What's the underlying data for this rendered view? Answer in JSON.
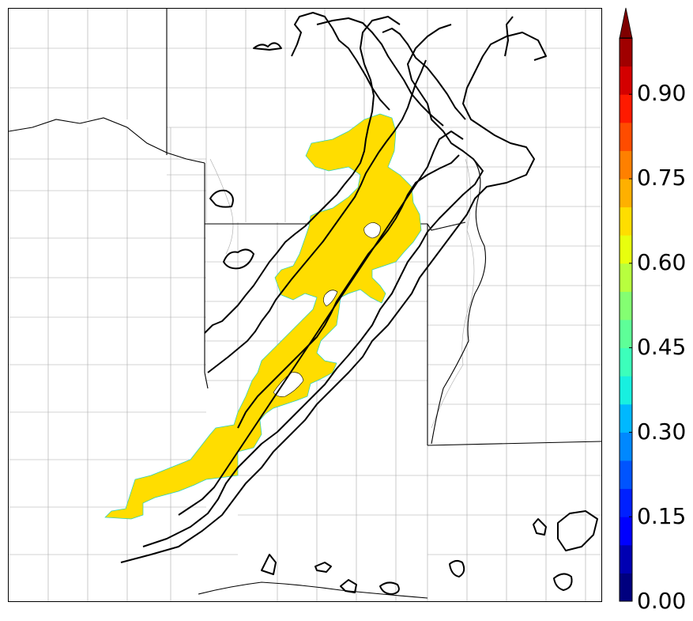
{
  "map": {
    "shaded_field_color": "#ffdd00",
    "contour_color": "#000000",
    "county_line_color": "#9a9a9a",
    "state_line_color": "#000000"
  },
  "colorbar": {
    "tick_labels": [
      "0.00",
      "0.15",
      "0.30",
      "0.45",
      "0.60",
      "0.75",
      "0.90"
    ],
    "levels": [
      {
        "value": 0.0,
        "color": "#00007f"
      },
      {
        "value": 0.05,
        "color": "#0000b2"
      },
      {
        "value": 0.1,
        "color": "#0000ff"
      },
      {
        "value": 0.15,
        "color": "#0020ff"
      },
      {
        "value": 0.2,
        "color": "#0054ff"
      },
      {
        "value": 0.25,
        "color": "#0088ff"
      },
      {
        "value": 0.3,
        "color": "#00b8ff"
      },
      {
        "value": 0.35,
        "color": "#18f0e0"
      },
      {
        "value": 0.4,
        "color": "#3cffbb"
      },
      {
        "value": 0.45,
        "color": "#5eff98"
      },
      {
        "value": 0.5,
        "color": "#84ff72"
      },
      {
        "value": 0.55,
        "color": "#b8ff3e"
      },
      {
        "value": 0.6,
        "color": "#e8ff0e"
      },
      {
        "value": 0.65,
        "color": "#ffde00"
      },
      {
        "value": 0.7,
        "color": "#ffb000"
      },
      {
        "value": 0.75,
        "color": "#ff8000"
      },
      {
        "value": 0.8,
        "color": "#ff4c00"
      },
      {
        "value": 0.85,
        "color": "#ff1a00"
      },
      {
        "value": 0.9,
        "color": "#d40000"
      },
      {
        "value": 0.95,
        "color": "#a00000"
      }
    ],
    "extend": "max"
  }
}
